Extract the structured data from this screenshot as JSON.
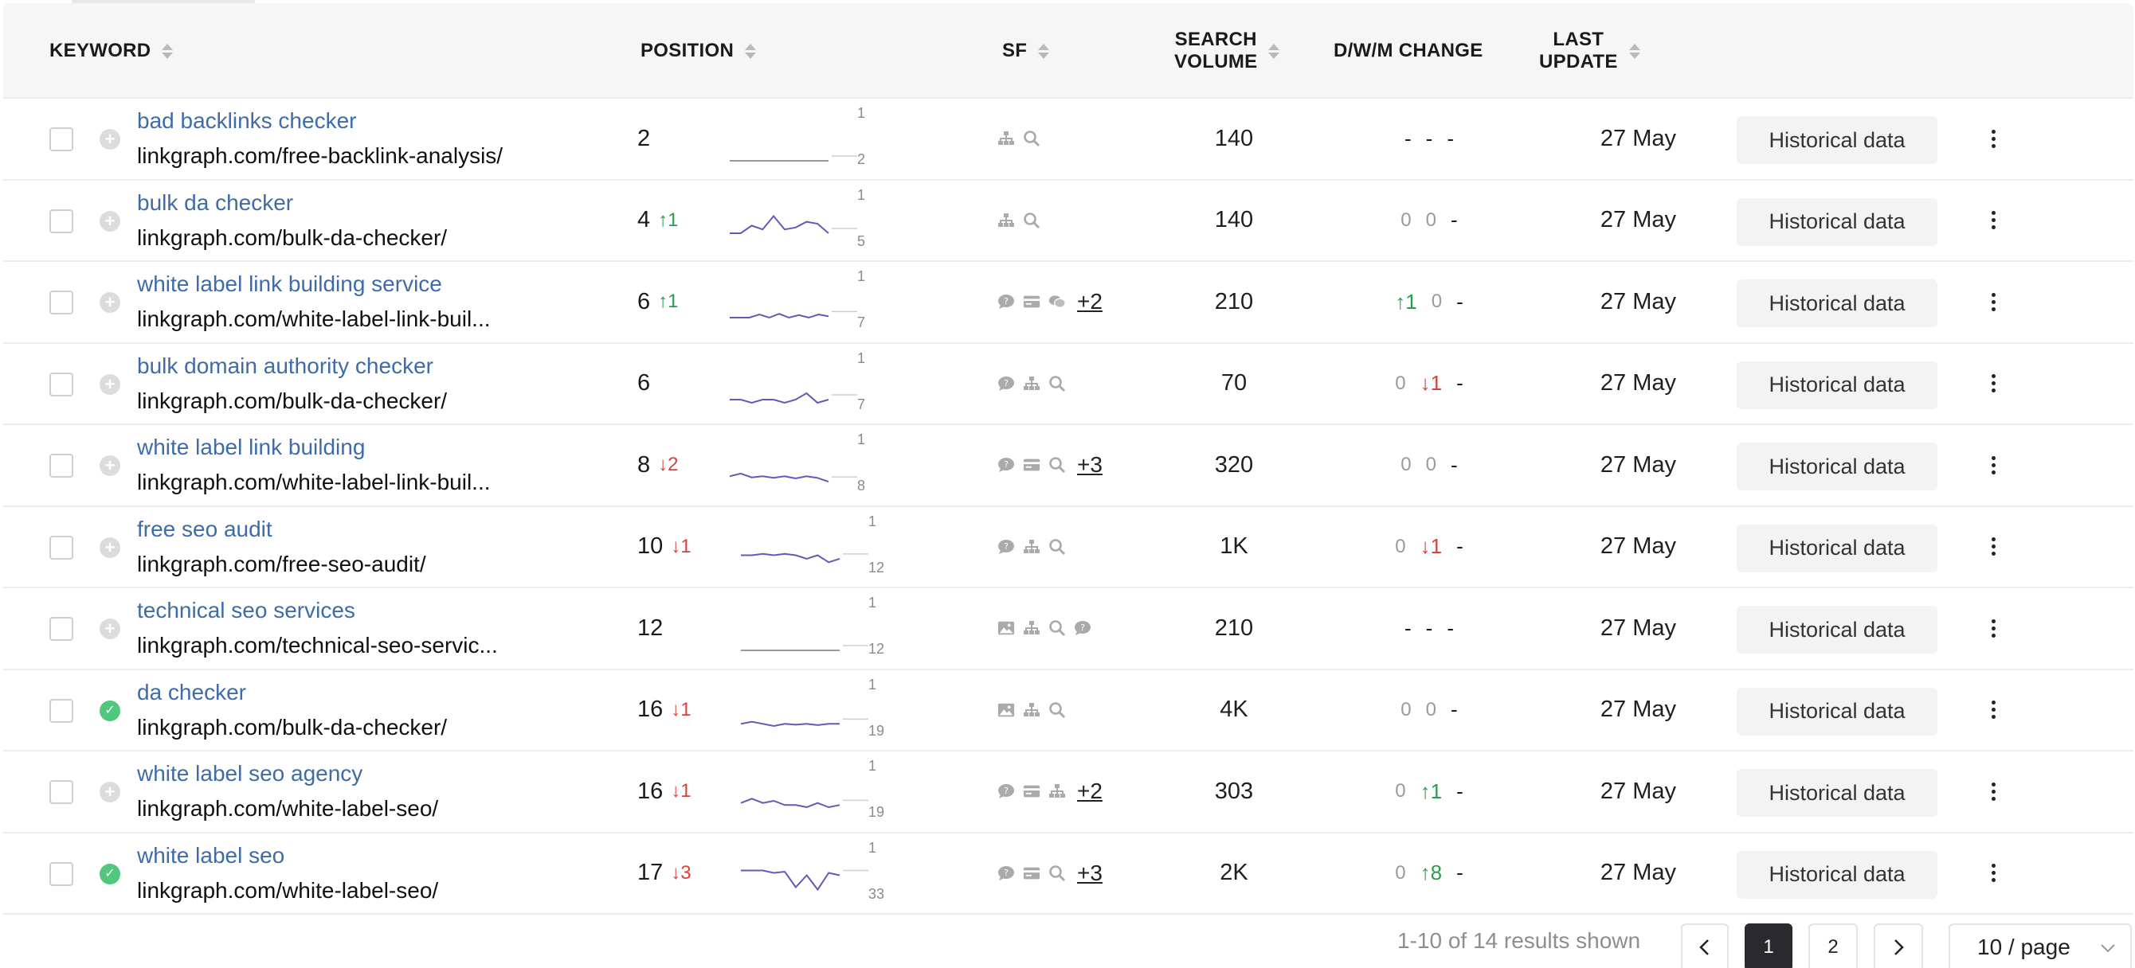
{
  "columns": {
    "keyword": "KEYWORD",
    "position": "POSITION",
    "sf": "SF",
    "search_volume_1": "SEARCH",
    "search_volume_2": "VOLUME",
    "change": "D/W/M CHANGE",
    "last_update_1": "LAST",
    "last_update_2": "UPDATE"
  },
  "history_label": "Historical data",
  "rows": [
    {
      "keyword": "bad backlinks checker",
      "url": "linkgraph.com/free-backlink-analysis/",
      "position": "2",
      "change_dir": "",
      "change_val": "",
      "trend_top": "1",
      "trend_bottom": "2",
      "trend": [
        2,
        2,
        2,
        2,
        2,
        2,
        2,
        2,
        2,
        2
      ],
      "sf_icons": [
        "sitemap-icon",
        "search-icon"
      ],
      "sf_more": "",
      "volume": "140",
      "d": "-",
      "w": "-",
      "m": "-",
      "updated": "27 May",
      "tracked": false
    },
    {
      "keyword": "bulk da checker",
      "url": "linkgraph.com/bulk-da-checker/",
      "position": "4",
      "change_dir": "up",
      "change_val": "1",
      "trend_top": "1",
      "trend_bottom": "5",
      "trend": [
        4,
        4,
        3.2,
        3.6,
        2.2,
        3.6,
        3.4,
        2.8,
        3,
        4
      ],
      "sf_icons": [
        "sitemap-icon",
        "search-icon"
      ],
      "sf_more": "",
      "volume": "140",
      "d": "0",
      "w": "0",
      "m": "-",
      "updated": "27 May",
      "tracked": false
    },
    {
      "keyword": "white label link building service",
      "url": "linkgraph.com/white-label-link-buil...",
      "position": "6",
      "change_dir": "up",
      "change_val": "1",
      "trend_top": "1",
      "trend_bottom": "7",
      "trend": [
        6,
        6,
        6,
        5.5,
        6,
        5.4,
        6,
        5.6,
        6,
        5.5,
        5.8
      ],
      "sf_icons": [
        "chat-icon",
        "card-icon",
        "chat-group-icon"
      ],
      "sf_more": "+2",
      "volume": "210",
      "d": "↑1",
      "w": "0",
      "m": "-",
      "updated": "27 May",
      "tracked": false
    },
    {
      "keyword": "bulk domain authority checker",
      "url": "linkgraph.com/bulk-da-checker/",
      "position": "6",
      "change_dir": "",
      "change_val": "",
      "trend_top": "1",
      "trend_bottom": "7",
      "trend": [
        6,
        6,
        6.5,
        6,
        6,
        6.5,
        6,
        5,
        6.5,
        6
      ],
      "sf_icons": [
        "chat-icon",
        "sitemap-icon",
        "search-icon"
      ],
      "sf_more": "",
      "volume": "70",
      "d": "0",
      "w": "↓1",
      "m": "-",
      "updated": "27 May",
      "tracked": false
    },
    {
      "keyword": "white label link building",
      "url": "linkgraph.com/white-label-link-buil...",
      "position": "8",
      "change_dir": "down",
      "change_val": "2",
      "trend_top": "1",
      "trend_bottom": "8",
      "trend": [
        6,
        5.5,
        6.2,
        6,
        6.3,
        6,
        6.4,
        6,
        6.3,
        7
      ],
      "sf_icons": [
        "chat-icon",
        "card-icon",
        "search-icon"
      ],
      "sf_more": "+3",
      "volume": "320",
      "d": "0",
      "w": "0",
      "m": "-",
      "updated": "27 May",
      "tracked": false
    },
    {
      "keyword": "free seo audit",
      "url": "linkgraph.com/free-seo-audit/",
      "position": "10",
      "change_dir": "down",
      "change_val": "1",
      "trend_top": "1",
      "trend_bottom": "12",
      "trend": [
        8,
        8,
        7.6,
        8,
        7.6,
        8,
        9,
        8,
        10,
        9
      ],
      "sf_icons": [
        "chat-icon",
        "sitemap-icon",
        "search-icon"
      ],
      "sf_more": "",
      "volume": "1K",
      "d": "0",
      "w": "↓1",
      "m": "-",
      "updated": "27 May",
      "tracked": false
    },
    {
      "keyword": "technical seo services",
      "url": "linkgraph.com/technical-seo-servic...",
      "position": "12",
      "change_dir": "",
      "change_val": "",
      "trend_top": "1",
      "trend_bottom": "12",
      "trend": [
        12,
        12,
        12,
        12,
        12,
        12,
        12,
        12,
        12,
        12
      ],
      "sf_icons": [
        "image-icon",
        "sitemap-icon",
        "search-icon",
        "chat-icon"
      ],
      "sf_more": "",
      "volume": "210",
      "d": "-",
      "w": "-",
      "m": "-",
      "updated": "27 May",
      "tracked": false
    },
    {
      "keyword": "da checker",
      "url": "linkgraph.com/bulk-da-checker/",
      "position": "16",
      "change_dir": "down",
      "change_val": "1",
      "trend_top": "1",
      "trend_bottom": "19",
      "trend": [
        15,
        14,
        15,
        16,
        15,
        15.4,
        15,
        15.6,
        15,
        15
      ],
      "sf_icons": [
        "image-icon",
        "sitemap-icon",
        "search-icon"
      ],
      "sf_more": "",
      "volume": "4K",
      "d": "0",
      "w": "0",
      "m": "-",
      "updated": "27 May",
      "tracked": true
    },
    {
      "keyword": "white label seo agency",
      "url": "linkgraph.com/white-label-seo/",
      "position": "16",
      "change_dir": "down",
      "change_val": "1",
      "trend_top": "1",
      "trend_bottom": "19",
      "trend": [
        14,
        12,
        14,
        13,
        15,
        15,
        16,
        14,
        16,
        15
      ],
      "sf_icons": [
        "chat-icon",
        "card-icon",
        "sitemap-icon"
      ],
      "sf_more": "+2",
      "volume": "303",
      "d": "0",
      "w": "↑1",
      "m": "-",
      "updated": "27 May",
      "tracked": false
    },
    {
      "keyword": "white label seo",
      "url": "linkgraph.com/white-label-seo/",
      "position": "17",
      "change_dir": "down",
      "change_val": "3",
      "trend_top": "1",
      "trend_bottom": "33",
      "trend": [
        12,
        12,
        12,
        14,
        13,
        26,
        16,
        28,
        14,
        16
      ],
      "sf_icons": [
        "chat-icon",
        "card-icon",
        "search-icon"
      ],
      "sf_more": "+3",
      "volume": "2K",
      "d": "0",
      "w": "↑8",
      "m": "-",
      "updated": "27 May",
      "tracked": true
    }
  ],
  "pagination": {
    "summary": "1-10 of 14 results shown",
    "prev": "<",
    "pages": [
      "1",
      "2"
    ],
    "next": ">",
    "page_size": "10 / page"
  },
  "colors": {
    "link": "#3f6ba8",
    "up": "#2d9b4e",
    "down": "#d1453b",
    "spark": "#6a55b8"
  }
}
